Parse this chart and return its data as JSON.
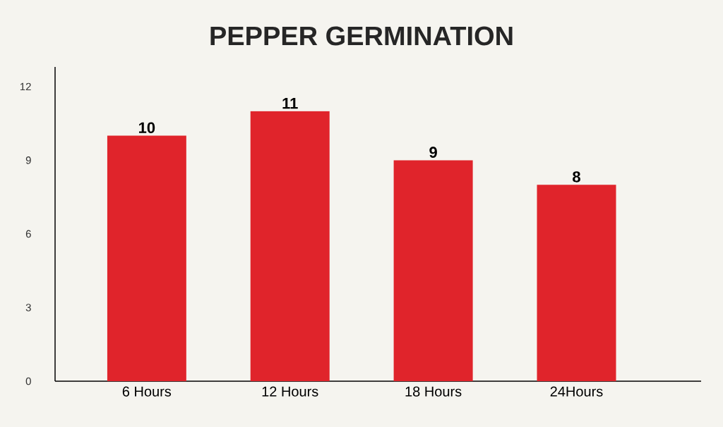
{
  "chart_data": {
    "type": "bar",
    "title": "PEPPER GERMINATION",
    "categories": [
      "6 Hours",
      "12 Hours",
      "18 Hours",
      "24Hours"
    ],
    "values": [
      10,
      11,
      9,
      8
    ],
    "color": "#e0242b",
    "data_labels": true,
    "grid": false,
    "ylim": [
      0,
      12.8
    ],
    "yticks": [
      0,
      3,
      6,
      9,
      12
    ]
  }
}
